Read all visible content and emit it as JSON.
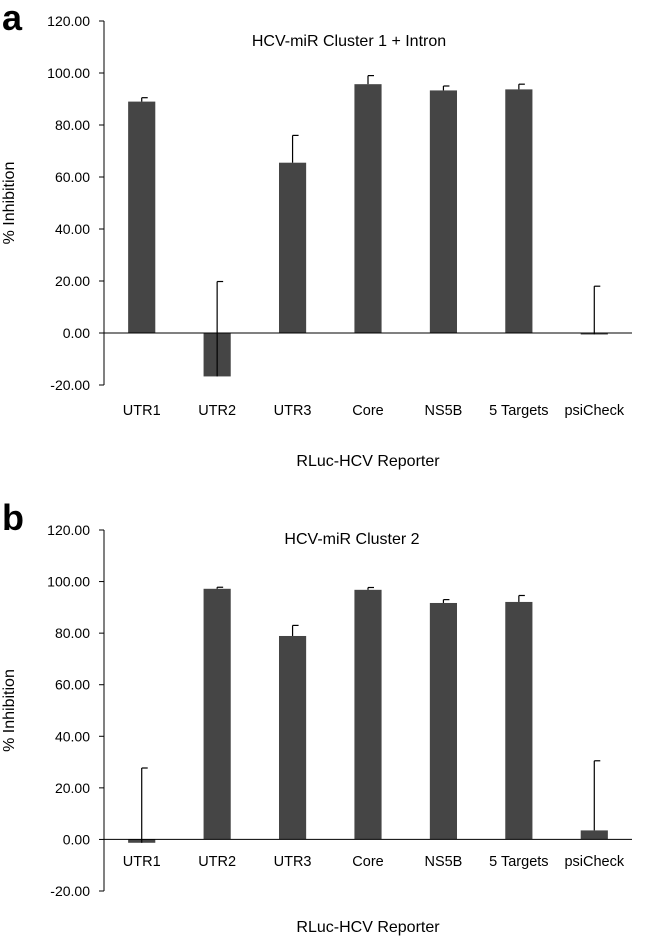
{
  "figure": {
    "panels": [
      {
        "letter": "a"
      },
      {
        "letter": "b"
      }
    ]
  },
  "chart_data": [
    {
      "type": "bar",
      "panel": "a",
      "title": "HCV-miR Cluster 1 + Intron",
      "xlabel": "RLuc-HCV Reporter",
      "ylabel": "% Inhibition",
      "ylim": [
        -20,
        120
      ],
      "yticks": [
        "-20.00",
        "0.00",
        "20.00",
        "40.00",
        "60.00",
        "80.00",
        "100.00",
        "120.00"
      ],
      "categories": [
        "UTR1",
        "UTR2",
        "UTR3",
        "Core",
        "NS5B",
        "5 Targets",
        "psiCheck"
      ],
      "values": [
        89.0,
        -16.7,
        65.5,
        95.7,
        93.3,
        93.7,
        -0.5
      ],
      "errors": [
        1.5,
        36.5,
        10.5,
        3.3,
        1.7,
        2.0,
        18.5
      ],
      "bar_color": "#454545",
      "grid": false,
      "legend": "none"
    },
    {
      "type": "bar",
      "panel": "b",
      "title": "HCV-miR Cluster 2",
      "xlabel": "RLuc-HCV Reporter",
      "ylabel": "% Inhibition",
      "ylim": [
        -20,
        120
      ],
      "yticks": [
        "-20.00",
        "0.00",
        "20.00",
        "40.00",
        "60.00",
        "80.00",
        "100.00",
        "120.00"
      ],
      "categories": [
        "UTR1",
        "UTR2",
        "UTR3",
        "Core",
        "NS5B",
        "5 Targets",
        "psiCheck"
      ],
      "values": [
        -1.3,
        97.2,
        78.9,
        96.8,
        91.7,
        92.1,
        3.5
      ],
      "errors": [
        29.0,
        0.6,
        4.1,
        0.9,
        1.3,
        2.5,
        27.0
      ],
      "bar_color": "#454545",
      "grid": false,
      "legend": "none"
    }
  ]
}
